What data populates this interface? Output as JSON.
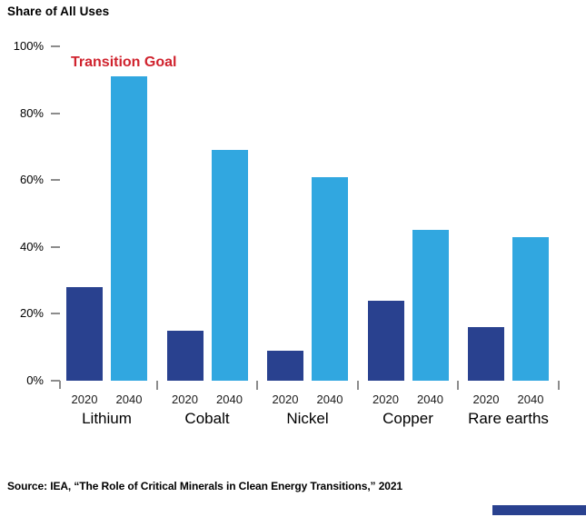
{
  "title": "Share of All Uses",
  "annotation": {
    "label": "Transition Goal",
    "color": "#d0232e"
  },
  "source": "Source: IEA, “The Role of Critical Minerals in Clean Energy Transitions,” 2021",
  "colors": {
    "series_2020": "#29418f",
    "series_2040": "#31a7e0",
    "axis_tick": "#8c8c8c",
    "footer_bar": "#29418f"
  },
  "chart_data": {
    "type": "bar",
    "title": "Share of All Uses",
    "categories": [
      "Lithium",
      "Cobalt",
      "Nickel",
      "Copper",
      "Rare earths"
    ],
    "series": [
      {
        "name": "2020",
        "color": "#29418f",
        "values": [
          28,
          15,
          9,
          24,
          16
        ]
      },
      {
        "name": "2040",
        "color": "#31a7e0",
        "values": [
          91,
          69,
          61,
          45,
          43
        ]
      }
    ],
    "xlabel": "",
    "ylabel": "Share of All Uses",
    "ylim": [
      0,
      100
    ],
    "yticks": [
      "0%",
      "20%",
      "40%",
      "60%",
      "80%",
      "100%"
    ],
    "bar_group_labels": [
      "2020",
      "2040"
    ],
    "annotation": "Transition Goal",
    "grid": false,
    "legend_position": "none"
  }
}
